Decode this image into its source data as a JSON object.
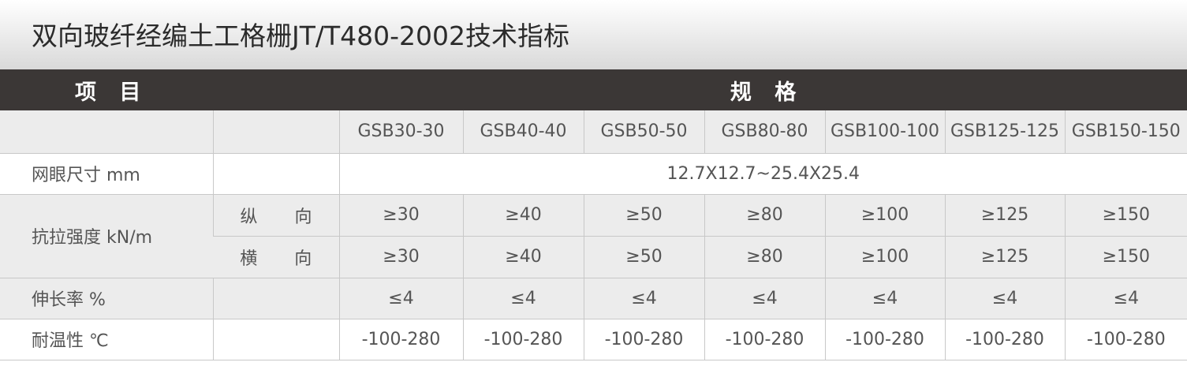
{
  "title": "双向玻纤经编土工格栅JT/T480-2002技术指标",
  "header": {
    "item": "项 目",
    "spec": "规 格"
  },
  "specs": [
    "GSB30-30",
    "GSB40-40",
    "GSB50-50",
    "GSB80-80",
    "GSB100-100",
    "GSB125-125",
    "GSB150-150"
  ],
  "mesh": {
    "label": "网眼尺寸 mm",
    "value": "12.7X12.7~25.4X25.4"
  },
  "strength": {
    "label": "抗拉强度 kN/m",
    "directions": [
      "纵 向",
      "横 向"
    ],
    "values": [
      [
        "≥30",
        "≥40",
        "≥50",
        "≥80",
        "≥100",
        "≥125",
        "≥150"
      ],
      [
        "≥30",
        "≥40",
        "≥50",
        "≥80",
        "≥100",
        "≥125",
        "≥150"
      ]
    ]
  },
  "elongation": {
    "label": "伸长率 %",
    "values": [
      "≤4",
      "≤4",
      "≤4",
      "≤4",
      "≤4",
      "≤4",
      "≤4"
    ]
  },
  "temperature": {
    "label": "耐温性 ℃",
    "values": [
      "-100-280",
      "-100-280",
      "-100-280",
      "-100-280",
      "-100-280",
      "-100-280",
      "-100-280"
    ]
  }
}
